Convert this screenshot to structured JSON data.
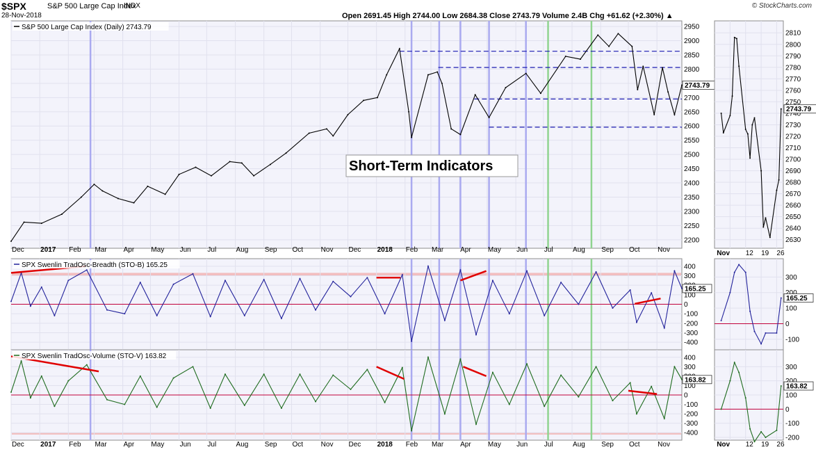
{
  "header": {
    "symbol": "$SPX",
    "name": "S&P 500 Large Cap Index",
    "exchange": "INDX",
    "date": "28-Nov-2018",
    "quote": "Open 2691.45   High 2744.00   Low 2684.38   Close 2743.79   Volume 2.4B   Chg +61.62 (+2.30%) ▲",
    "logo": "© StockCharts.com"
  },
  "annotation": "Short-Term Indicators",
  "colors": {
    "price": "#000000",
    "breadth": "#22229b",
    "volume": "#1e6b1e",
    "trendline": "#e00000",
    "baseline": "#c0003a",
    "support": "#1a1ab0",
    "blue_marker": "#aaaaf0",
    "green_marker": "#90d490",
    "panel_bg": "#f3f3fb",
    "band": "#f2b8b8"
  },
  "chart_data": [
    {
      "type": "line",
      "title": "S&P 500 Large Cap Index (Daily) 2743.79",
      "x_axis": [
        "Dec",
        "2017",
        "Feb",
        "Mar",
        "Apr",
        "May",
        "Jun",
        "Jul",
        "Aug",
        "Sep",
        "Oct",
        "Nov",
        "Dec",
        "2018",
        "Feb",
        "Mar",
        "Apr",
        "May",
        "Jun",
        "Jul",
        "Aug",
        "Sep",
        "Oct",
        "Nov"
      ],
      "x_range": [
        "2016-12-01",
        "2018-11-28"
      ],
      "ylim": [
        2180,
        2960
      ],
      "y_ticks": [
        2200,
        2250,
        2300,
        2350,
        2400,
        2450,
        2500,
        2550,
        2600,
        2650,
        2700,
        2750,
        2800,
        2850,
        2900,
        2950
      ],
      "last_value": "2743.79",
      "x": [
        "2016-12-01",
        "2016-12-15",
        "2017-01-03",
        "2017-01-25",
        "2017-02-15",
        "2017-03-01",
        "2017-03-10",
        "2017-03-27",
        "2017-04-13",
        "2017-04-28",
        "2017-05-17",
        "2017-06-01",
        "2017-06-19",
        "2017-07-06",
        "2017-07-26",
        "2017-08-08",
        "2017-08-21",
        "2017-09-08",
        "2017-09-25",
        "2017-10-20",
        "2017-11-08",
        "2017-11-15",
        "2017-12-01",
        "2017-12-18",
        "2018-01-02",
        "2018-01-12",
        "2018-01-26",
        "2018-02-05",
        "2018-02-08",
        "2018-02-26",
        "2018-03-08",
        "2018-03-13",
        "2018-03-23",
        "2018-04-02",
        "2018-04-18",
        "2018-05-03",
        "2018-05-21",
        "2018-06-12",
        "2018-06-28",
        "2018-07-25",
        "2018-08-10",
        "2018-08-29",
        "2018-09-10",
        "2018-09-20",
        "2018-10-05",
        "2018-10-11",
        "2018-10-17",
        "2018-10-29",
        "2018-11-07",
        "2018-11-13",
        "2018-11-20",
        "2018-11-28"
      ],
      "values": [
        2195,
        2262,
        2258,
        2290,
        2350,
        2395,
        2372,
        2345,
        2330,
        2388,
        2360,
        2430,
        2455,
        2425,
        2475,
        2470,
        2425,
        2465,
        2505,
        2575,
        2590,
        2565,
        2640,
        2690,
        2700,
        2780,
        2872,
        2650,
        2560,
        2780,
        2790,
        2750,
        2590,
        2570,
        2710,
        2630,
        2735,
        2785,
        2715,
        2845,
        2835,
        2920,
        2880,
        2925,
        2880,
        2728,
        2810,
        2640,
        2805,
        2720,
        2640,
        2743.79
      ],
      "support_resistance": [
        {
          "x0": "2018-01-26",
          "x1": "2018-11-28",
          "y": 2863
        },
        {
          "x0": "2018-03-09",
          "x1": "2018-11-28",
          "y": 2806
        },
        {
          "x0": "2018-04-17",
          "x1": "2018-11-28",
          "y": 2695
        },
        {
          "x0": "2018-05-03",
          "x1": "2018-11-28",
          "y": 2596
        }
      ]
    },
    {
      "type": "line",
      "title": "SPX Swenlin TradOsc-Breadth (STO-B) 165.25",
      "ylim": [
        -450,
        450
      ],
      "y_ticks": [
        400,
        300,
        200,
        100,
        0,
        -100,
        -200,
        -300,
        -400
      ],
      "last_value": "165.25",
      "band": [
        300,
        330
      ],
      "x": [
        "2016-12-01",
        "2016-12-12",
        "2016-12-22",
        "2017-01-03",
        "2017-01-17",
        "2017-02-01",
        "2017-02-21",
        "2017-03-15",
        "2017-04-03",
        "2017-04-20",
        "2017-05-08",
        "2017-05-26",
        "2017-06-16",
        "2017-07-05",
        "2017-07-21",
        "2017-08-11",
        "2017-09-01",
        "2017-09-20",
        "2017-10-10",
        "2017-10-27",
        "2017-11-15",
        "2017-12-04",
        "2017-12-22",
        "2018-01-10",
        "2018-01-29",
        "2018-02-08",
        "2018-02-26",
        "2018-03-16",
        "2018-04-02",
        "2018-04-19",
        "2018-05-07",
        "2018-05-25",
        "2018-06-13",
        "2018-07-02",
        "2018-07-20",
        "2018-08-08",
        "2018-08-27",
        "2018-09-14",
        "2018-10-03",
        "2018-10-10",
        "2018-10-26",
        "2018-11-09",
        "2018-11-20",
        "2018-11-28"
      ],
      "values": [
        30,
        330,
        -20,
        180,
        -120,
        250,
        360,
        -60,
        -100,
        230,
        -120,
        210,
        320,
        -130,
        250,
        -120,
        260,
        -150,
        270,
        -60,
        240,
        80,
        280,
        -100,
        310,
        -390,
        400,
        -170,
        360,
        -320,
        250,
        -100,
        350,
        -120,
        230,
        0,
        340,
        -40,
        150,
        -190,
        120,
        -250,
        350,
        165.25
      ],
      "trendlines": [
        {
          "x0": "2016-12-01",
          "y0": 330,
          "x1": "2017-02-20",
          "y1": 400
        },
        {
          "x0": "2018-01-01",
          "y0": 280,
          "x1": "2018-01-27",
          "y1": 280
        },
        {
          "x0": "2018-04-02",
          "y0": 250,
          "x1": "2018-04-30",
          "y1": 350
        },
        {
          "x0": "2018-10-08",
          "y0": 5,
          "x1": "2018-11-05",
          "y1": 60
        }
      ]
    },
    {
      "type": "line",
      "title": "SPX Swenlin TradOsc-Volume (STO-V) 163.82",
      "ylim": [
        -450,
        450
      ],
      "y_ticks": [
        400,
        300,
        200,
        100,
        0,
        -100,
        -200,
        -300,
        -400
      ],
      "last_value": "163.82",
      "band": [
        -420,
        -400
      ],
      "x": [
        "2016-12-01",
        "2016-12-12",
        "2016-12-22",
        "2017-01-03",
        "2017-01-17",
        "2017-02-01",
        "2017-02-21",
        "2017-03-15",
        "2017-04-03",
        "2017-04-20",
        "2017-05-08",
        "2017-05-26",
        "2017-06-16",
        "2017-07-05",
        "2017-07-21",
        "2017-08-11",
        "2017-09-01",
        "2017-09-20",
        "2017-10-10",
        "2017-10-27",
        "2017-11-15",
        "2017-12-04",
        "2017-12-22",
        "2018-01-10",
        "2018-01-29",
        "2018-02-08",
        "2018-02-26",
        "2018-03-16",
        "2018-04-02",
        "2018-04-19",
        "2018-05-07",
        "2018-05-25",
        "2018-06-13",
        "2018-07-02",
        "2018-07-20",
        "2018-08-08",
        "2018-08-27",
        "2018-09-14",
        "2018-10-03",
        "2018-10-10",
        "2018-10-26",
        "2018-11-09",
        "2018-11-20",
        "2018-11-28"
      ],
      "values": [
        30,
        360,
        -30,
        200,
        -120,
        150,
        320,
        -50,
        -100,
        200,
        -130,
        180,
        300,
        -140,
        220,
        -110,
        220,
        -140,
        220,
        -70,
        210,
        60,
        270,
        -80,
        290,
        -380,
        400,
        -200,
        380,
        -310,
        240,
        -100,
        330,
        -120,
        210,
        -20,
        300,
        -60,
        130,
        -200,
        90,
        -250,
        300,
        163.82
      ],
      "trendlines": [
        {
          "x0": "2016-12-01",
          "y0": 410,
          "x1": "2017-03-06",
          "y1": 250
        },
        {
          "x0": "2018-01-01",
          "y0": 300,
          "x1": "2018-01-31",
          "y1": 170
        },
        {
          "x0": "2018-04-05",
          "y0": 300,
          "x1": "2018-04-30",
          "y1": 200
        },
        {
          "x0": "2018-10-01",
          "y0": 45,
          "x1": "2018-11-01",
          "y1": 10
        }
      ]
    },
    {
      "type": "line",
      "title": "",
      "x_axis": [
        "Nov",
        "12",
        "19",
        "26"
      ],
      "ylim": [
        2625,
        2818
      ],
      "y_ticks": [
        2630,
        2640,
        2650,
        2660,
        2670,
        2680,
        2690,
        2700,
        2710,
        2720,
        2730,
        2740,
        2750,
        2760,
        2770,
        2780,
        2790,
        2800,
        2810
      ],
      "last_value": "2743.79",
      "x": [
        "2018-11-01",
        "2018-11-02",
        "2018-11-05",
        "2018-11-06",
        "2018-11-07",
        "2018-11-08",
        "2018-11-09",
        "2018-11-12",
        "2018-11-13",
        "2018-11-14",
        "2018-11-15",
        "2018-11-16",
        "2018-11-19",
        "2018-11-20",
        "2018-11-21",
        "2018-11-23",
        "2018-11-26",
        "2018-11-27",
        "2018-11-28"
      ],
      "values": [
        2740,
        2723,
        2738,
        2755,
        2806,
        2805,
        2781,
        2726,
        2722,
        2701,
        2730,
        2736,
        2690,
        2641,
        2649,
        2632,
        2673,
        2682,
        2743.79
      ]
    },
    {
      "type": "line",
      "title": "",
      "ylim": [
        -150,
        400
      ],
      "y_ticks": [
        300,
        200,
        100,
        0,
        -100
      ],
      "last_value": "165.25",
      "x": [
        "2018-11-01",
        "2018-11-05",
        "2018-11-07",
        "2018-11-09",
        "2018-11-12",
        "2018-11-14",
        "2018-11-16",
        "2018-11-19",
        "2018-11-21",
        "2018-11-26",
        "2018-11-28"
      ],
      "values": [
        20,
        200,
        330,
        380,
        330,
        80,
        -50,
        -130,
        -60,
        -60,
        165.25
      ]
    },
    {
      "type": "line",
      "title": "",
      "ylim": [
        -200,
        400
      ],
      "y_ticks": [
        300,
        200,
        100,
        0,
        -100,
        -200
      ],
      "last_value": "163.82",
      "x": [
        "2018-11-01",
        "2018-11-05",
        "2018-11-07",
        "2018-11-09",
        "2018-11-12",
        "2018-11-14",
        "2018-11-16",
        "2018-11-19",
        "2018-11-21",
        "2018-11-26",
        "2018-11-28"
      ],
      "values": [
        0,
        200,
        330,
        260,
        80,
        -140,
        -230,
        -160,
        -200,
        -150,
        163.82
      ]
    }
  ],
  "markers": {
    "blue": [
      "2017-02-25",
      "2018-02-08",
      "2018-03-10",
      "2018-04-02",
      "2018-05-03",
      "2018-06-12"
    ],
    "green": [
      "2018-07-06",
      "2018-08-22"
    ]
  }
}
